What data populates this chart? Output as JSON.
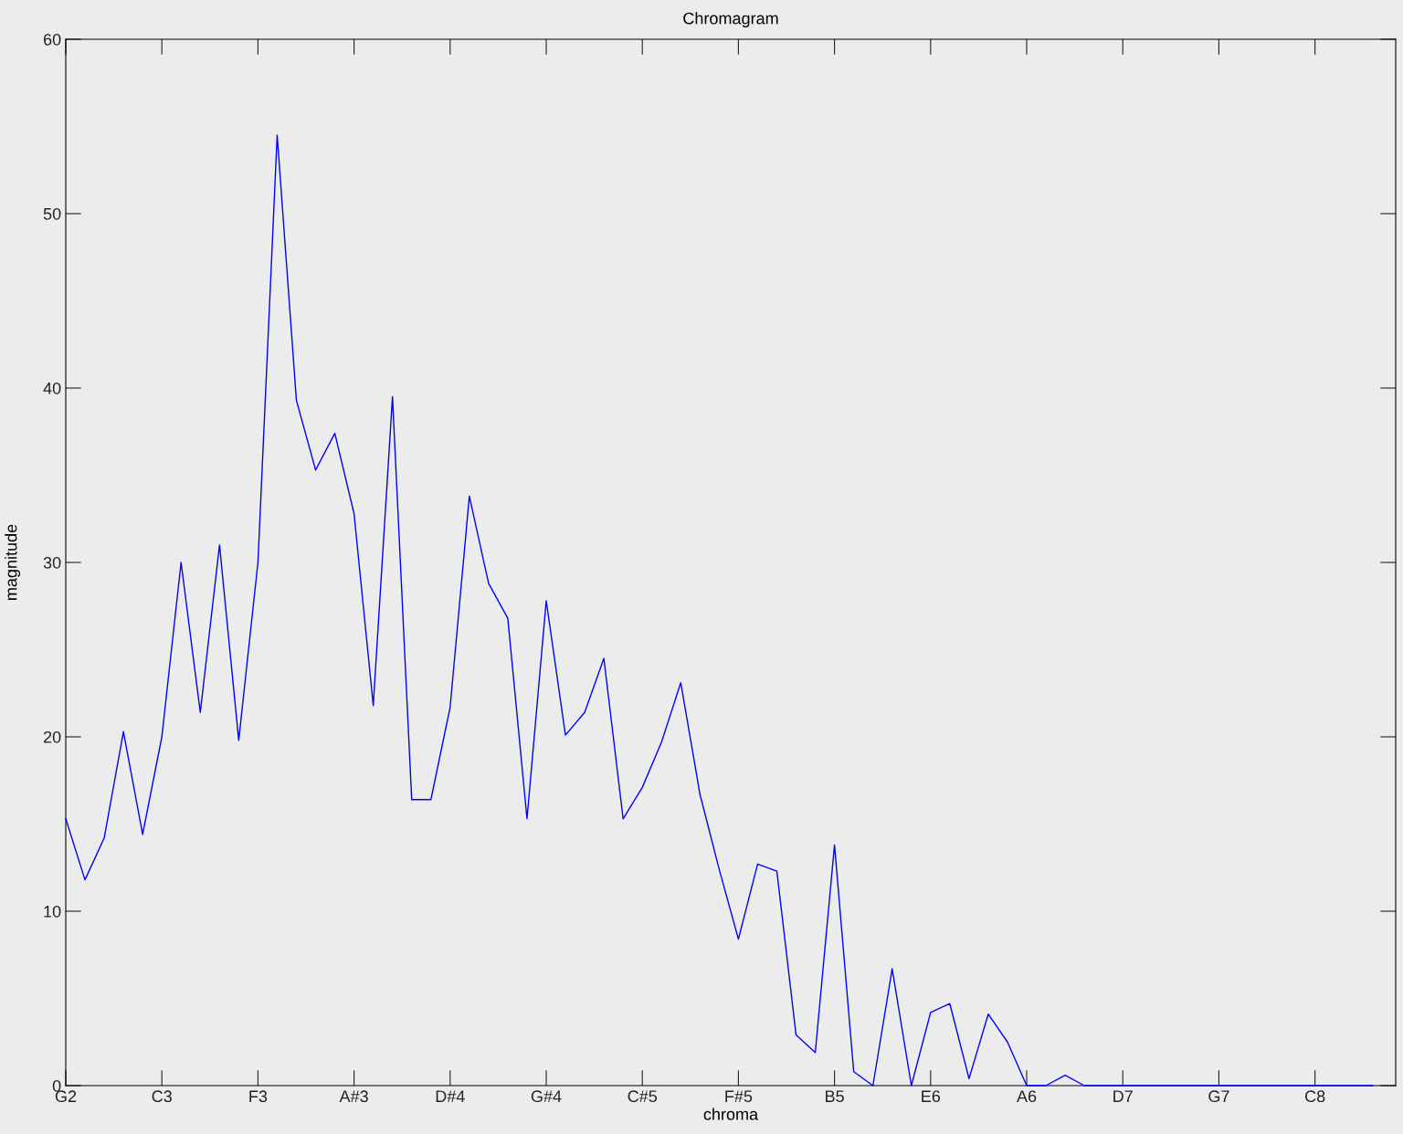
{
  "chart_data": {
    "type": "line",
    "title": "Chromagram",
    "xlabel": "chroma",
    "ylabel": "magnitude",
    "categories": [
      "G2",
      null,
      null,
      null,
      null,
      "C3",
      null,
      null,
      null,
      null,
      "F3",
      null,
      null,
      null,
      null,
      "A#3",
      null,
      null,
      null,
      null,
      "D#4",
      null,
      null,
      null,
      null,
      "G#4",
      null,
      null,
      null,
      null,
      "C#5",
      null,
      null,
      null,
      null,
      "F#5",
      null,
      null,
      null,
      null,
      "B5",
      null,
      null,
      null,
      null,
      "E6",
      null,
      null,
      null,
      null,
      "A6",
      null,
      null,
      null,
      null,
      "D7",
      null,
      null,
      null,
      null,
      "G7",
      null,
      null,
      null,
      null,
      "C8",
      null,
      null,
      null
    ],
    "series": [
      {
        "color": "#0000ff",
        "values": [
          15.3,
          11.8,
          14.2,
          20.3,
          14.4,
          20.0,
          30.0,
          21.4,
          31.0,
          19.8,
          30.0,
          54.5,
          39.3,
          35.3,
          37.4,
          32.8,
          21.8,
          39.5,
          16.4,
          16.4,
          21.7,
          33.8,
          28.8,
          26.8,
          15.3,
          27.8,
          20.1,
          21.4,
          24.5,
          15.3,
          17.1,
          19.7,
          23.1,
          16.7,
          12.4,
          8.4,
          12.7,
          12.3,
          2.9,
          1.9,
          13.8,
          0.8,
          0,
          6.7,
          0,
          4.2,
          4.7,
          0.4,
          4.1,
          2.5,
          0,
          0,
          0.6,
          0,
          0,
          0,
          0,
          0,
          0,
          0,
          0,
          0,
          0,
          0,
          0,
          0,
          0,
          0,
          0
        ]
      }
    ],
    "ylim": [
      0,
      60
    ],
    "yticks": [
      0,
      10,
      20,
      30,
      40,
      50,
      60
    ],
    "grid": false,
    "marker": "none",
    "line_style": "solid"
  }
}
